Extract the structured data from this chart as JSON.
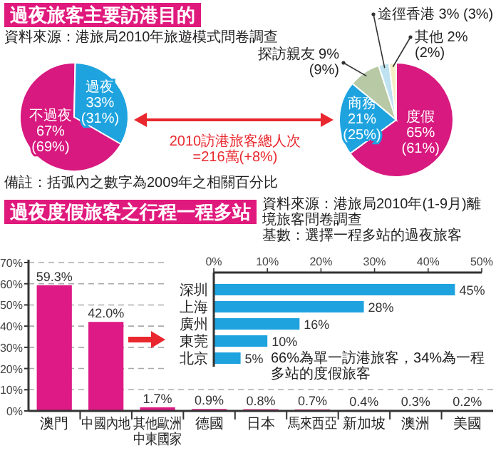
{
  "chart_data": [
    {
      "type": "pie",
      "title": "過夜旅客主要訪港目的",
      "annotations": [
        "資料來源：港旅局2010年旅遊模式問卷調查",
        "2010訪港旅客總人次\n=216萬(+8%)",
        "備註：括弧內之數字為2009年之相關百分比"
      ],
      "categories": [
        "不過夜",
        "過夜"
      ],
      "values": [
        67,
        33
      ],
      "colors": [
        "#d8197f",
        "#1ea3df"
      ],
      "value_labels": [
        "67%\n(69%)",
        "33%\n(31%)"
      ]
    },
    {
      "type": "pie",
      "categories": [
        "度假",
        "商務",
        "探訪親友",
        "途徑香港",
        "其他"
      ],
      "values": [
        65,
        21,
        9,
        3,
        2
      ],
      "colors": [
        "#d8197f",
        "#1ea3df",
        "#b8c9a6",
        "#bfe2f0",
        "#f4efc4"
      ],
      "value_labels": [
        "65%\n(61%)",
        "21%\n(25%)",
        "9%\n(9%)",
        "3% (3%)",
        "2%\n(2%)"
      ]
    },
    {
      "type": "bar",
      "title": "過夜度假旅客之行程一程多站",
      "categories": [
        "澳門",
        "中國內地",
        "其他歐洲中東國家",
        "德國",
        "日本",
        "馬來西亞",
        "新加坡",
        "澳洲",
        "美國"
      ],
      "values": [
        59.3,
        42.0,
        1.7,
        0.9,
        0.8,
        0.7,
        0.4,
        0.3,
        0.2
      ],
      "color": "#dd1a86",
      "value_labels": [
        "59.3%",
        "42.0%",
        "1.7%",
        "0.9%",
        "0.8%",
        "0.7%",
        "0.4%",
        "0.3%",
        "0.2%"
      ],
      "ylim": [
        0,
        70
      ],
      "yticks": [
        {
          "value": 0,
          "label": "0%"
        },
        {
          "value": 10,
          "label": "10%"
        },
        {
          "value": 20,
          "label": "20%"
        },
        {
          "value": 30,
          "label": "30%"
        },
        {
          "value": 40,
          "label": "40%"
        },
        {
          "value": 50,
          "label": "50%"
        },
        {
          "value": 60,
          "label": "60%"
        },
        {
          "value": 70,
          "label": "70%"
        }
      ],
      "grid": "y"
    },
    {
      "type": "bar",
      "orientation": "horizontal",
      "annotations": [
        "資料來源：港旅局2010年(1-9月)離境旅客問卷調查",
        "基數：選擇一程多站的過夜旅客",
        "66%為單一訪港旅客，34%為一程多站的度假旅客"
      ],
      "categories": [
        "深圳",
        "上海",
        "廣州",
        "東莞",
        "北京"
      ],
      "values": [
        45,
        28,
        16,
        10,
        5
      ],
      "color": "#1ea3df",
      "value_labels": [
        "45%",
        "28%",
        "16%",
        "10%",
        "5%"
      ],
      "xlim": [
        0,
        50
      ],
      "xticks": [
        {
          "value": 0,
          "label": "0%"
        },
        {
          "value": 10,
          "label": "10%"
        },
        {
          "value": 20,
          "label": "20%"
        },
        {
          "value": 30,
          "label": "30%"
        },
        {
          "value": 40,
          "label": "40%"
        },
        {
          "value": 50,
          "label": "50%"
        }
      ]
    }
  ]
}
